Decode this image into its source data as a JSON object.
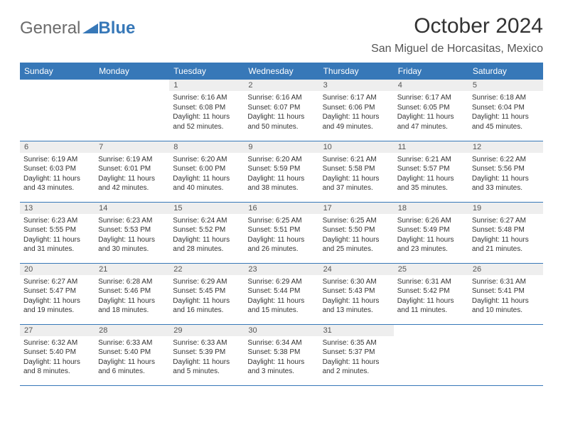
{
  "logo": {
    "part1": "General",
    "part2": "Blue"
  },
  "title": "October 2024",
  "location": "San Miguel de Horcasitas, Mexico",
  "colors": {
    "header_bg": "#3778b8",
    "header_text": "#ffffff",
    "daynum_bg": "#eeeeee",
    "border": "#3778b8",
    "logo_gray": "#6b6b6b",
    "logo_blue": "#3778b8"
  },
  "day_headers": [
    "Sunday",
    "Monday",
    "Tuesday",
    "Wednesday",
    "Thursday",
    "Friday",
    "Saturday"
  ],
  "weeks": [
    [
      null,
      null,
      {
        "n": "1",
        "sr": "Sunrise: 6:16 AM",
        "ss": "Sunset: 6:08 PM",
        "dl": "Daylight: 11 hours and 52 minutes."
      },
      {
        "n": "2",
        "sr": "Sunrise: 6:16 AM",
        "ss": "Sunset: 6:07 PM",
        "dl": "Daylight: 11 hours and 50 minutes."
      },
      {
        "n": "3",
        "sr": "Sunrise: 6:17 AM",
        "ss": "Sunset: 6:06 PM",
        "dl": "Daylight: 11 hours and 49 minutes."
      },
      {
        "n": "4",
        "sr": "Sunrise: 6:17 AM",
        "ss": "Sunset: 6:05 PM",
        "dl": "Daylight: 11 hours and 47 minutes."
      },
      {
        "n": "5",
        "sr": "Sunrise: 6:18 AM",
        "ss": "Sunset: 6:04 PM",
        "dl": "Daylight: 11 hours and 45 minutes."
      }
    ],
    [
      {
        "n": "6",
        "sr": "Sunrise: 6:19 AM",
        "ss": "Sunset: 6:03 PM",
        "dl": "Daylight: 11 hours and 43 minutes."
      },
      {
        "n": "7",
        "sr": "Sunrise: 6:19 AM",
        "ss": "Sunset: 6:01 PM",
        "dl": "Daylight: 11 hours and 42 minutes."
      },
      {
        "n": "8",
        "sr": "Sunrise: 6:20 AM",
        "ss": "Sunset: 6:00 PM",
        "dl": "Daylight: 11 hours and 40 minutes."
      },
      {
        "n": "9",
        "sr": "Sunrise: 6:20 AM",
        "ss": "Sunset: 5:59 PM",
        "dl": "Daylight: 11 hours and 38 minutes."
      },
      {
        "n": "10",
        "sr": "Sunrise: 6:21 AM",
        "ss": "Sunset: 5:58 PM",
        "dl": "Daylight: 11 hours and 37 minutes."
      },
      {
        "n": "11",
        "sr": "Sunrise: 6:21 AM",
        "ss": "Sunset: 5:57 PM",
        "dl": "Daylight: 11 hours and 35 minutes."
      },
      {
        "n": "12",
        "sr": "Sunrise: 6:22 AM",
        "ss": "Sunset: 5:56 PM",
        "dl": "Daylight: 11 hours and 33 minutes."
      }
    ],
    [
      {
        "n": "13",
        "sr": "Sunrise: 6:23 AM",
        "ss": "Sunset: 5:55 PM",
        "dl": "Daylight: 11 hours and 31 minutes."
      },
      {
        "n": "14",
        "sr": "Sunrise: 6:23 AM",
        "ss": "Sunset: 5:53 PM",
        "dl": "Daylight: 11 hours and 30 minutes."
      },
      {
        "n": "15",
        "sr": "Sunrise: 6:24 AM",
        "ss": "Sunset: 5:52 PM",
        "dl": "Daylight: 11 hours and 28 minutes."
      },
      {
        "n": "16",
        "sr": "Sunrise: 6:25 AM",
        "ss": "Sunset: 5:51 PM",
        "dl": "Daylight: 11 hours and 26 minutes."
      },
      {
        "n": "17",
        "sr": "Sunrise: 6:25 AM",
        "ss": "Sunset: 5:50 PM",
        "dl": "Daylight: 11 hours and 25 minutes."
      },
      {
        "n": "18",
        "sr": "Sunrise: 6:26 AM",
        "ss": "Sunset: 5:49 PM",
        "dl": "Daylight: 11 hours and 23 minutes."
      },
      {
        "n": "19",
        "sr": "Sunrise: 6:27 AM",
        "ss": "Sunset: 5:48 PM",
        "dl": "Daylight: 11 hours and 21 minutes."
      }
    ],
    [
      {
        "n": "20",
        "sr": "Sunrise: 6:27 AM",
        "ss": "Sunset: 5:47 PM",
        "dl": "Daylight: 11 hours and 19 minutes."
      },
      {
        "n": "21",
        "sr": "Sunrise: 6:28 AM",
        "ss": "Sunset: 5:46 PM",
        "dl": "Daylight: 11 hours and 18 minutes."
      },
      {
        "n": "22",
        "sr": "Sunrise: 6:29 AM",
        "ss": "Sunset: 5:45 PM",
        "dl": "Daylight: 11 hours and 16 minutes."
      },
      {
        "n": "23",
        "sr": "Sunrise: 6:29 AM",
        "ss": "Sunset: 5:44 PM",
        "dl": "Daylight: 11 hours and 15 minutes."
      },
      {
        "n": "24",
        "sr": "Sunrise: 6:30 AM",
        "ss": "Sunset: 5:43 PM",
        "dl": "Daylight: 11 hours and 13 minutes."
      },
      {
        "n": "25",
        "sr": "Sunrise: 6:31 AM",
        "ss": "Sunset: 5:42 PM",
        "dl": "Daylight: 11 hours and 11 minutes."
      },
      {
        "n": "26",
        "sr": "Sunrise: 6:31 AM",
        "ss": "Sunset: 5:41 PM",
        "dl": "Daylight: 11 hours and 10 minutes."
      }
    ],
    [
      {
        "n": "27",
        "sr": "Sunrise: 6:32 AM",
        "ss": "Sunset: 5:40 PM",
        "dl": "Daylight: 11 hours and 8 minutes."
      },
      {
        "n": "28",
        "sr": "Sunrise: 6:33 AM",
        "ss": "Sunset: 5:40 PM",
        "dl": "Daylight: 11 hours and 6 minutes."
      },
      {
        "n": "29",
        "sr": "Sunrise: 6:33 AM",
        "ss": "Sunset: 5:39 PM",
        "dl": "Daylight: 11 hours and 5 minutes."
      },
      {
        "n": "30",
        "sr": "Sunrise: 6:34 AM",
        "ss": "Sunset: 5:38 PM",
        "dl": "Daylight: 11 hours and 3 minutes."
      },
      {
        "n": "31",
        "sr": "Sunrise: 6:35 AM",
        "ss": "Sunset: 5:37 PM",
        "dl": "Daylight: 11 hours and 2 minutes."
      },
      null,
      null
    ]
  ]
}
